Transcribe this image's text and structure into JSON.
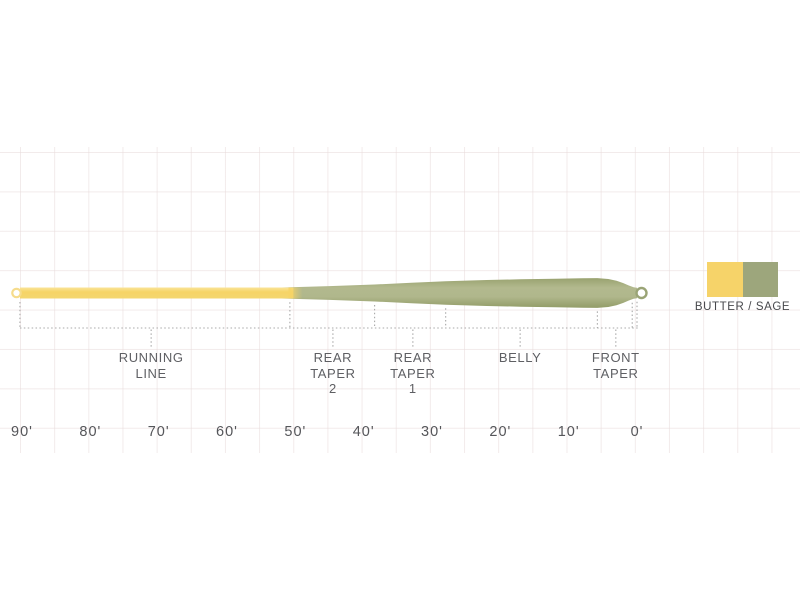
{
  "legend": {
    "label": "BUTTER / SAGE",
    "colors": [
      {
        "name": "butter",
        "hex": "#f6d369"
      },
      {
        "name": "sage",
        "hex": "#9da67c"
      }
    ]
  },
  "diagram": {
    "unit": "feet",
    "orientation": "front tip at right (0'), rear at left (90')",
    "line_colors": {
      "running_line_butter": "#f6d466",
      "head_sage": "#aab287",
      "dotted_guides": "#a8a8a8"
    },
    "segments": [
      {
        "name": "running-line",
        "label": "RUNNING\nLINE",
        "from_ft": 90.3,
        "to_ft": 50.8,
        "center_ft": 71.1
      },
      {
        "name": "rear-taper-2",
        "label": "REAR\nTAPER\n2",
        "from_ft": 50.8,
        "to_ft": 38.4,
        "center_ft": 44.5
      },
      {
        "name": "rear-taper-1",
        "label": "REAR\nTAPER\n1",
        "from_ft": 38.4,
        "to_ft": 28.0,
        "center_ft": 32.8
      },
      {
        "name": "belly",
        "label": "BELLY",
        "from_ft": 28.0,
        "to_ft": 5.8,
        "center_ft": 17.1
      },
      {
        "name": "front-taper",
        "label": "FRONT\nTAPER",
        "from_ft": 5.8,
        "to_ft": 0.7,
        "center_ft": 3.1
      }
    ],
    "boundary_ticks_ft": [
      90.3,
      50.8,
      38.4,
      28.0,
      5.8,
      0.7,
      0
    ],
    "profile_half_thickness": [
      {
        "ft": 90.3,
        "hw": 5.5
      },
      {
        "ft": 52.0,
        "hw": 5.5
      },
      {
        "ft": 45.0,
        "hw": 6.9
      },
      {
        "ft": 38.4,
        "hw": 8.5
      },
      {
        "ft": 33.0,
        "hw": 10.2
      },
      {
        "ft": 28.0,
        "hw": 11.8
      },
      {
        "ft": 22.0,
        "hw": 13.0
      },
      {
        "ft": 17.0,
        "hw": 13.7
      },
      {
        "ft": 12.0,
        "hw": 14.3
      },
      {
        "ft": 8.0,
        "hw": 14.7
      },
      {
        "ft": 5.8,
        "hw": 14.9
      },
      {
        "ft": 4.2,
        "hw": 14.0
      },
      {
        "ft": 3.0,
        "hw": 12.2
      },
      {
        "ft": 2.0,
        "hw": 9.9
      },
      {
        "ft": 1.2,
        "hw": 7.5
      },
      {
        "ft": 0.5,
        "hw": 5.8
      },
      {
        "ft": 0.0,
        "hw": 5.2
      }
    ],
    "scale": [
      {
        "label": "90'",
        "ft": 90
      },
      {
        "label": "80'",
        "ft": 80
      },
      {
        "label": "70'",
        "ft": 70
      },
      {
        "label": "60'",
        "ft": 60
      },
      {
        "label": "50'",
        "ft": 50
      },
      {
        "label": "40'",
        "ft": 40
      },
      {
        "label": "30'",
        "ft": 30
      },
      {
        "label": "20'",
        "ft": 20
      },
      {
        "label": "10'",
        "ft": 10
      },
      {
        "label": "0'",
        "ft": 0
      }
    ]
  }
}
